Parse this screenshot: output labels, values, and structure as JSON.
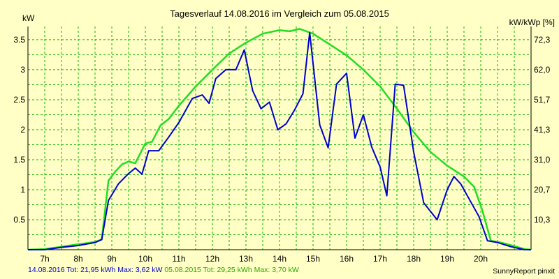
{
  "chart_data": {
    "type": "line",
    "title": "Tagesverlauf 14.08.2016 im Vergleich zum 05.08.2015",
    "left_unit": "kW",
    "right_unit": "kW/kWp [%]",
    "x_ticks": [
      "7h",
      "8h",
      "9h",
      "10h",
      "11h",
      "12h",
      "13h",
      "14h",
      "15h",
      "16h",
      "17h",
      "18h",
      "19h",
      "20h"
    ],
    "y_ticks": [
      "0.5",
      "1",
      "1.5",
      "2",
      "2.5",
      "3",
      "3.5"
    ],
    "y_right_ticks": [
      "10,3",
      "20,7",
      "31,0",
      "41,3",
      "51,7",
      "62,0",
      "72,3"
    ],
    "xlim": [
      6.0,
      21.0
    ],
    "ylim": [
      0,
      3.72
    ],
    "grid": true,
    "colors": {
      "series1": "#0000cc",
      "series2": "#22dd22",
      "grid": "#00bb00",
      "background": "#ffffc6"
    },
    "series": [
      {
        "name": "14.08.2016",
        "points": [
          [
            6.0,
            0.0
          ],
          [
            6.5,
            0.0
          ],
          [
            7.0,
            0.04
          ],
          [
            7.5,
            0.07
          ],
          [
            8.0,
            0.12
          ],
          [
            8.2,
            0.17
          ],
          [
            8.4,
            0.82
          ],
          [
            8.7,
            1.1
          ],
          [
            9.0,
            1.27
          ],
          [
            9.2,
            1.36
          ],
          [
            9.4,
            1.26
          ],
          [
            9.6,
            1.65
          ],
          [
            9.9,
            1.65
          ],
          [
            10.2,
            1.88
          ],
          [
            10.5,
            2.12
          ],
          [
            10.9,
            2.52
          ],
          [
            11.2,
            2.58
          ],
          [
            11.4,
            2.44
          ],
          [
            11.6,
            2.85
          ],
          [
            11.9,
            3.0
          ],
          [
            12.2,
            3.0
          ],
          [
            12.45,
            3.33
          ],
          [
            12.7,
            2.65
          ],
          [
            12.95,
            2.35
          ],
          [
            13.2,
            2.46
          ],
          [
            13.45,
            2.0
          ],
          [
            13.7,
            2.1
          ],
          [
            13.95,
            2.33
          ],
          [
            14.2,
            2.6
          ],
          [
            14.4,
            3.62
          ],
          [
            14.7,
            2.08
          ],
          [
            14.95,
            1.7
          ],
          [
            15.2,
            2.76
          ],
          [
            15.5,
            2.94
          ],
          [
            15.75,
            1.86
          ],
          [
            16.0,
            2.25
          ],
          [
            16.25,
            1.71
          ],
          [
            16.5,
            1.38
          ],
          [
            16.7,
            0.9
          ],
          [
            16.95,
            2.76
          ],
          [
            17.2,
            2.74
          ],
          [
            17.5,
            1.63
          ],
          [
            17.8,
            0.78
          ],
          [
            18.2,
            0.5
          ],
          [
            18.5,
            1.0
          ],
          [
            18.7,
            1.22
          ],
          [
            18.9,
            1.1
          ],
          [
            19.2,
            0.8
          ],
          [
            19.45,
            0.55
          ],
          [
            19.7,
            0.15
          ],
          [
            20.0,
            0.12
          ],
          [
            20.4,
            0.05
          ],
          [
            20.8,
            0.0
          ],
          [
            21.0,
            0.0
          ]
        ]
      },
      {
        "name": "05.08.2015",
        "points": [
          [
            6.0,
            0.0
          ],
          [
            6.5,
            0.01
          ],
          [
            7.0,
            0.05
          ],
          [
            7.5,
            0.09
          ],
          [
            8.0,
            0.13
          ],
          [
            8.2,
            0.17
          ],
          [
            8.4,
            1.15
          ],
          [
            8.6,
            1.3
          ],
          [
            8.8,
            1.42
          ],
          [
            9.0,
            1.47
          ],
          [
            9.2,
            1.44
          ],
          [
            9.5,
            1.77
          ],
          [
            9.7,
            1.8
          ],
          [
            9.95,
            2.07
          ],
          [
            10.2,
            2.18
          ],
          [
            10.5,
            2.4
          ],
          [
            11.0,
            2.72
          ],
          [
            11.5,
            3.0
          ],
          [
            12.0,
            3.27
          ],
          [
            12.5,
            3.45
          ],
          [
            13.0,
            3.6
          ],
          [
            13.5,
            3.66
          ],
          [
            13.8,
            3.64
          ],
          [
            14.1,
            3.68
          ],
          [
            14.5,
            3.6
          ],
          [
            15.0,
            3.42
          ],
          [
            15.5,
            3.24
          ],
          [
            16.0,
            3.0
          ],
          [
            16.5,
            2.72
          ],
          [
            17.0,
            2.35
          ],
          [
            17.5,
            1.96
          ],
          [
            18.0,
            1.63
          ],
          [
            18.5,
            1.4
          ],
          [
            19.0,
            1.22
          ],
          [
            19.3,
            1.05
          ],
          [
            19.55,
            0.65
          ],
          [
            19.8,
            0.15
          ],
          [
            20.1,
            0.12
          ],
          [
            20.5,
            0.06
          ],
          [
            20.8,
            0.01
          ],
          [
            21.0,
            0.0
          ]
        ]
      }
    ]
  },
  "footer": {
    "series1_text": "14.08.2016 Tot: 21,95 kWh Max: 3,62 kW",
    "series2_text": "05.08.2015 Tot: 29,25 kWh Max: 3,70 kW",
    "credit": "SunnyReport pinxit"
  }
}
